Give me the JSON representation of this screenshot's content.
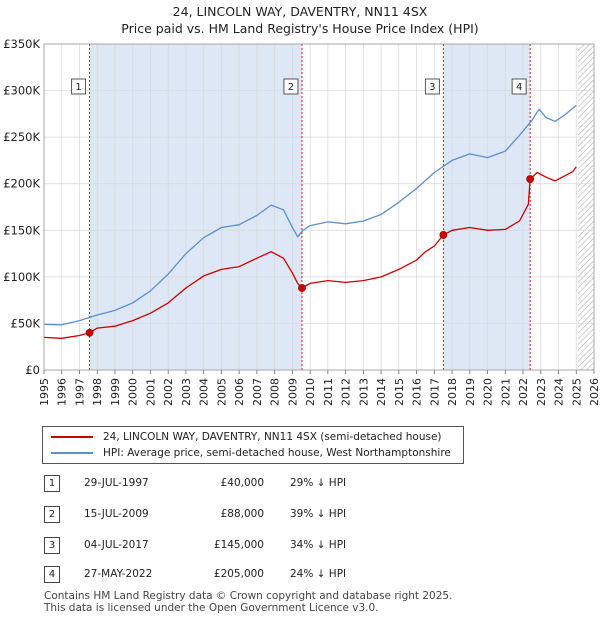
{
  "header": {
    "title_line1": "24, LINCOLN WAY, DAVENTRY, NN11 4SX",
    "title_line2": "Price paid vs. HM Land Registry's House Price Index (HPI)"
  },
  "colors": {
    "price_line": "#cc0000",
    "hpi_line": "#5b8fd0",
    "shade": "#dde7f6",
    "grid": "#d8d8d8"
  },
  "chart_data": {
    "type": "line",
    "x_range": [
      1995,
      2026
    ],
    "ylim": [
      0,
      350000
    ],
    "y_ticks": [
      0,
      50000,
      100000,
      150000,
      200000,
      250000,
      300000,
      350000
    ],
    "y_tick_labels": [
      "£0",
      "£50K",
      "£100K",
      "£150K",
      "£200K",
      "£250K",
      "£300K",
      "£350K"
    ],
    "x_ticks": [
      1995,
      1996,
      1997,
      1998,
      1999,
      2000,
      2001,
      2002,
      2003,
      2004,
      2005,
      2006,
      2007,
      2008,
      2009,
      2010,
      2011,
      2012,
      2013,
      2014,
      2015,
      2016,
      2017,
      2018,
      2019,
      2020,
      2021,
      2022,
      2023,
      2024,
      2025,
      2026
    ],
    "x_tick_labels": [
      "1995",
      "1996",
      "1997",
      "1998",
      "1999",
      "2000",
      "2001",
      "2002",
      "2003",
      "2004",
      "2005",
      "2006",
      "2007",
      "2008",
      "2009",
      "2010",
      "2011",
      "2012",
      "2013",
      "2014",
      "2015",
      "2016",
      "2017",
      "2018",
      "2019",
      "2020",
      "2021",
      "2022",
      "2023",
      "2024",
      "2025",
      "2026"
    ],
    "shaded_periods": [
      [
        1997.57,
        2009.54
      ],
      [
        2017.51,
        2022.4
      ]
    ],
    "hatched_from": 2025.1,
    "series": [
      {
        "name": "24, LINCOLN WAY, DAVENTRY, NN11 4SX (semi-detached house)",
        "color": "#cc0000",
        "x": [
          1995,
          1996,
          1997,
          1997.57,
          1998,
          1999,
          2000,
          2001,
          2002,
          2003,
          2004,
          2005,
          2006,
          2007,
          2007.8,
          2008.5,
          2009.0,
          2009.3,
          2009.54,
          2010,
          2011,
          2012,
          2013,
          2014,
          2015,
          2016,
          2016.5,
          2017.0,
          2017.51,
          2018,
          2019,
          2020,
          2021,
          2021.8,
          2022.3,
          2022.4,
          2022.8,
          2023.3,
          2023.8,
          2024.3,
          2024.8,
          2025.0
        ],
        "values": [
          35000,
          34000,
          37000,
          40000,
          45000,
          47000,
          53000,
          61000,
          72000,
          88000,
          101000,
          108000,
          111000,
          120000,
          127000,
          120000,
          104000,
          93000,
          88000,
          93000,
          96000,
          94000,
          96000,
          100000,
          108000,
          118000,
          127000,
          133000,
          145000,
          150000,
          153000,
          150000,
          151000,
          160000,
          178000,
          205000,
          212000,
          207000,
          203000,
          208000,
          213000,
          218000
        ]
      },
      {
        "name": "HPI: Average price, semi-detached house, West Northamptonshire",
        "color": "#5b8fd0",
        "x": [
          1995,
          1996,
          1997,
          1998,
          1999,
          2000,
          2001,
          2002,
          2003,
          2004,
          2005,
          2006,
          2007,
          2007.8,
          2008.5,
          2009.0,
          2009.3,
          2009.6,
          2010,
          2011,
          2012,
          2013,
          2014,
          2015,
          2016,
          2017,
          2018,
          2019,
          2020,
          2021,
          2021.8,
          2022.5,
          2022.9,
          2023.3,
          2023.8,
          2024.3,
          2024.8,
          2025.0
        ],
        "values": [
          49000,
          48500,
          53000,
          59000,
          64000,
          72000,
          85000,
          103000,
          125000,
          142000,
          153000,
          156000,
          166000,
          177000,
          172000,
          153000,
          143000,
          150000,
          155000,
          159000,
          157000,
          160000,
          167000,
          180000,
          195000,
          212000,
          225000,
          232000,
          228000,
          235000,
          252000,
          268000,
          280000,
          271000,
          267000,
          273000,
          281000,
          284000
        ]
      }
    ],
    "sale_points": [
      {
        "label": "1",
        "x": 1997.57,
        "value": 40000
      },
      {
        "label": "2",
        "x": 2009.54,
        "value": 88000
      },
      {
        "label": "3",
        "x": 2017.51,
        "value": 145000
      },
      {
        "label": "4",
        "x": 2022.4,
        "value": 205000
      }
    ]
  },
  "legend": {
    "price_label": "24, LINCOLN WAY, DAVENTRY, NN11 4SX (semi-detached house)",
    "hpi_label": "HPI: Average price, semi-detached house, West Northamptonshire"
  },
  "sales": [
    {
      "num": "1",
      "date": "29-JUL-1997",
      "price": "£40,000",
      "hpi": "29% ↓ HPI"
    },
    {
      "num": "2",
      "date": "15-JUL-2009",
      "price": "£88,000",
      "hpi": "39% ↓ HPI"
    },
    {
      "num": "3",
      "date": "04-JUL-2017",
      "price": "£145,000",
      "hpi": "34% ↓ HPI"
    },
    {
      "num": "4",
      "date": "27-MAY-2022",
      "price": "£205,000",
      "hpi": "24% ↓ HPI"
    }
  ],
  "footer": {
    "line1": "Contains HM Land Registry data © Crown copyright and database right 2025.",
    "line2": "This data is licensed under the Open Government Licence v3.0."
  }
}
